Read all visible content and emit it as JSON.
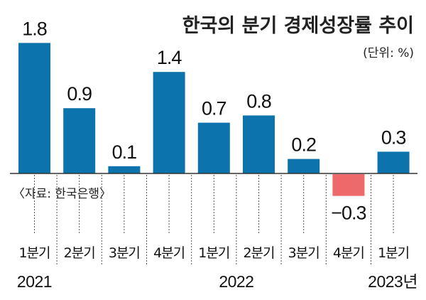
{
  "chart_data": {
    "type": "bar",
    "title": "한국의 분기 경제성장률 추이",
    "unit": "(단위: %)",
    "source": "〈자료: 한국은행〉",
    "categories": [
      "1분기",
      "2분기",
      "3분기",
      "4분기",
      "1분기",
      "2분기",
      "3분기",
      "4분기",
      "1분기"
    ],
    "values": [
      1.8,
      0.9,
      0.1,
      1.4,
      0.7,
      0.8,
      0.2,
      -0.3,
      0.3
    ],
    "value_labels": [
      "1.8",
      "0.9",
      "0.1",
      "1.4",
      "0.7",
      "0.8",
      "0.2",
      "−0.3",
      "0.3"
    ],
    "year_labels": [
      {
        "index": 0,
        "label": "2021"
      },
      {
        "index": 4,
        "label": "2022"
      },
      {
        "index": 8,
        "label": "2023년"
      }
    ],
    "colors": {
      "positive": "#0d73ad",
      "negative": "#ee6a6a",
      "axis": "#333333",
      "dotted": "#555555"
    },
    "ylim": [
      -0.3,
      1.8
    ]
  }
}
